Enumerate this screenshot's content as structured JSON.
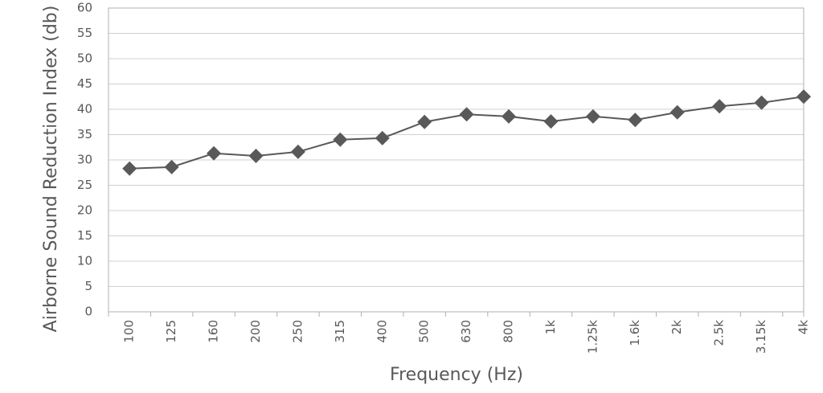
{
  "chart_data": {
    "type": "line",
    "x_label": "Frequency (Hz)",
    "y_label": "Airborne Sound Reduction Index (db)",
    "categories": [
      "100",
      "125",
      "160",
      "200",
      "250",
      "315",
      "400",
      "500",
      "630",
      "800",
      "1k",
      "1.25k",
      "1.6k",
      "2k",
      "2.5k",
      "3.15k",
      "4k"
    ],
    "series": [
      {
        "color": "#595959",
        "values": [
          28.3,
          28.6,
          31.3,
          30.8,
          31.6,
          34.0,
          34.3,
          37.5,
          39.0,
          38.6,
          37.6,
          38.6,
          37.9,
          39.4,
          40.6,
          41.3,
          42.5
        ]
      }
    ],
    "ylim": [
      0,
      60
    ],
    "yticks": [
      0,
      5,
      10,
      15,
      20,
      25,
      30,
      35,
      40,
      45,
      50,
      55,
      60
    ],
    "grid": true
  }
}
